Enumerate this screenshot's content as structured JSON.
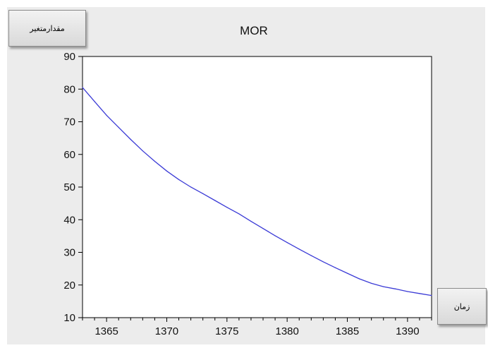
{
  "chart_data": {
    "type": "line",
    "title": "MOR",
    "xlabel": "زمان",
    "ylabel": "مقدارمتغیر",
    "xlim": [
      1363,
      1392
    ],
    "ylim": [
      10,
      90
    ],
    "xticks": [
      1365,
      1370,
      1375,
      1380,
      1385,
      1390
    ],
    "yticks": [
      10,
      20,
      30,
      40,
      50,
      60,
      70,
      80,
      90
    ],
    "grid": false,
    "series": [
      {
        "color": "#3b3bd6",
        "x": [
          1363,
          1364,
          1365,
          1366,
          1367,
          1368,
          1369,
          1370,
          1371,
          1372,
          1373,
          1374,
          1375,
          1376,
          1377,
          1378,
          1379,
          1380,
          1381,
          1382,
          1383,
          1384,
          1385,
          1386,
          1387,
          1388,
          1389,
          1390,
          1391,
          1392
        ],
        "y": [
          80.5,
          76.2,
          72.0,
          68.3,
          64.6,
          61.1,
          57.9,
          54.9,
          52.3,
          50.0,
          48.0,
          45.9,
          43.8,
          41.8,
          39.5,
          37.3,
          35.1,
          33.0,
          31.0,
          29.0,
          27.1,
          25.3,
          23.6,
          21.9,
          20.5,
          19.5,
          18.8,
          18.0,
          17.4,
          16.8
        ]
      }
    ]
  }
}
